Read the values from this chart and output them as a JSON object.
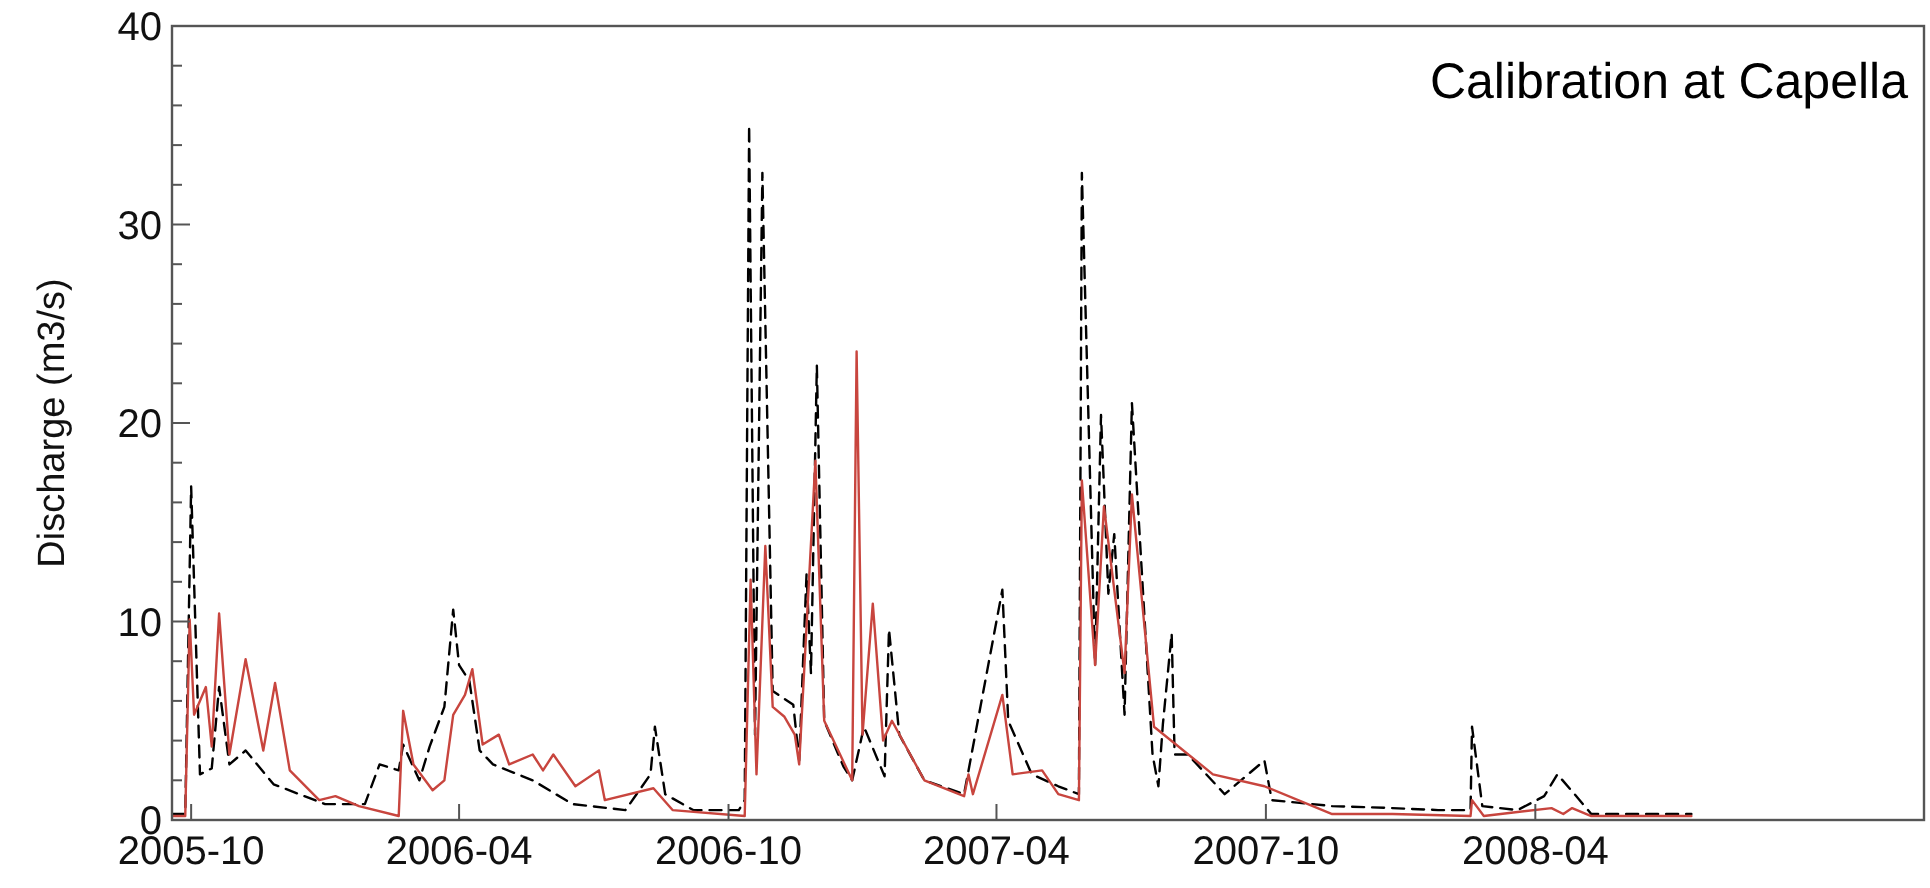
{
  "chart_data": {
    "type": "line",
    "title": "Calibration at Capella",
    "ylabel": "Discharge (m3/s)",
    "xlim": [
      "2005-09-18",
      "2008-12-21"
    ],
    "xticks": [
      {
        "value": "2005-10-01",
        "label": "2005-10"
      },
      {
        "value": "2006-04-01",
        "label": "2006-04"
      },
      {
        "value": "2006-10-01",
        "label": "2006-10"
      },
      {
        "value": "2007-04-01",
        "label": "2007-04"
      },
      {
        "value": "2007-10-01",
        "label": "2007-10"
      },
      {
        "value": "2008-04-01",
        "label": "2008-04"
      }
    ],
    "ylim": [
      0,
      40
    ],
    "yticks": [
      0,
      {
        "value": 2,
        "label": null
      },
      {
        "value": 4,
        "label": null
      },
      {
        "value": 6,
        "label": null
      },
      {
        "value": 8,
        "label": null
      },
      10,
      {
        "value": 12,
        "label": null
      },
      {
        "value": 14,
        "label": null
      },
      {
        "value": 16,
        "label": null
      },
      {
        "value": 18,
        "label": null
      },
      20,
      {
        "value": 22,
        "label": null
      },
      {
        "value": 24,
        "label": null
      },
      {
        "value": 26,
        "label": null
      },
      {
        "value": 28,
        "label": null
      },
      30,
      {
        "value": 32,
        "label": null
      },
      {
        "value": 34,
        "label": null
      },
      {
        "value": 36,
        "label": null
      },
      {
        "value": 38,
        "label": null
      },
      40
    ],
    "series": [
      {
        "color": "#000000",
        "line_style": "dashed",
        "x": [
          "2005-09-18",
          "2005-09-27",
          "2005-10-01",
          "2005-10-07",
          "2005-10-15",
          "2005-10-20",
          "2005-10-27",
          "2005-11-07",
          "2005-11-26",
          "2005-12-31",
          "2006-01-27",
          "2006-02-06",
          "2006-02-19",
          "2006-02-22",
          "2006-03-05",
          "2006-03-12",
          "2006-03-22",
          "2006-03-28",
          "2006-04-01",
          "2006-04-08",
          "2006-04-15",
          "2006-04-24",
          "2006-05-21",
          "2006-06-17",
          "2006-07-23",
          "2006-08-09",
          "2006-08-12",
          "2006-08-19",
          "2006-09-07",
          "2006-10-08",
          "2006-10-12",
          "2006-10-15",
          "2006-10-19",
          "2006-10-24",
          "2006-10-31",
          "2006-11-14",
          "2006-11-18",
          "2006-11-23",
          "2006-11-26",
          "2006-11-30",
          "2006-12-05",
          "2006-12-18",
          "2006-12-24",
          "2007-01-01",
          "2007-01-15",
          "2007-01-18",
          "2007-01-25",
          "2007-02-11",
          "2007-03-10",
          "2007-04-05",
          "2007-04-09",
          "2007-04-25",
          "2007-05-13",
          "2007-05-27",
          "2007-05-29",
          "2007-06-07",
          "2007-06-11",
          "2007-06-16",
          "2007-06-20",
          "2007-06-27",
          "2007-07-02",
          "2007-07-16",
          "2007-07-20",
          "2007-07-23",
          "2007-07-29",
          "2007-07-31",
          "2007-08-09",
          "2007-09-03",
          "2007-09-30",
          "2007-10-05",
          "2007-11-15",
          "2007-12-26",
          "2008-01-26",
          "2008-02-17",
          "2008-02-18",
          "2008-02-25",
          "2008-03-20",
          "2008-04-07",
          "2008-04-16",
          "2008-04-30",
          "2008-05-09",
          "2008-07-16"
        ],
        "values": [
          0.3,
          0.3,
          16.8,
          2.3,
          2.6,
          6.7,
          2.8,
          3.5,
          1.8,
          0.8,
          0.8,
          2.8,
          2.5,
          3.8,
          2.0,
          3.7,
          5.7,
          10.6,
          7.8,
          7.0,
          3.5,
          2.8,
          2.0,
          0.8,
          0.5,
          2.3,
          4.7,
          1.3,
          0.5,
          0.5,
          1.0,
          35.0,
          4.3,
          32.6,
          6.5,
          5.8,
          3.0,
          12.4,
          7.4,
          22.9,
          5.0,
          2.7,
          2.0,
          4.7,
          2.2,
          9.6,
          4.3,
          2.0,
          1.3,
          11.6,
          5.0,
          2.3,
          1.7,
          1.3,
          32.6,
          7.8,
          20.4,
          11.4,
          14.4,
          5.3,
          21.0,
          3.3,
          1.7,
          4.8,
          9.4,
          3.3,
          3.3,
          1.3,
          3.0,
          1.0,
          0.7,
          0.6,
          0.5,
          0.5,
          4.7,
          0.7,
          0.5,
          1.2,
          2.3,
          1.1,
          0.3,
          0.3
        ]
      },
      {
        "color": "#c8453e",
        "line_style": "solid",
        "x": [
          "2005-09-18",
          "2005-09-27",
          "2005-09-30",
          "2005-10-03",
          "2005-10-11",
          "2005-10-15",
          "2005-10-20",
          "2005-10-27",
          "2005-11-07",
          "2005-11-19",
          "2005-11-27",
          "2005-12-07",
          "2005-12-27",
          "2006-01-07",
          "2006-01-23",
          "2006-02-19",
          "2006-02-22",
          "2006-03-01",
          "2006-03-14",
          "2006-03-22",
          "2006-03-28",
          "2006-04-05",
          "2006-04-10",
          "2006-04-17",
          "2006-04-28",
          "2006-05-05",
          "2006-05-21",
          "2006-05-28",
          "2006-06-04",
          "2006-06-19",
          "2006-07-05",
          "2006-07-09",
          "2006-08-11",
          "2006-08-24",
          "2006-10-12",
          "2006-10-16",
          "2006-10-20",
          "2006-10-26",
          "2006-10-31",
          "2006-11-08",
          "2006-11-15",
          "2006-11-18",
          "2006-11-29",
          "2006-12-05",
          "2006-12-24",
          "2006-12-27",
          "2006-12-31",
          "2007-01-07",
          "2007-01-14",
          "2007-01-20",
          "2007-02-11",
          "2007-03-10",
          "2007-03-13",
          "2007-03-16",
          "2007-04-05",
          "2007-04-12",
          "2007-05-02",
          "2007-05-13",
          "2007-05-27",
          "2007-05-29",
          "2007-06-07",
          "2007-06-13",
          "2007-06-27",
          "2007-07-02",
          "2007-07-17",
          "2007-08-26",
          "2007-09-30",
          "2007-11-15",
          "2007-12-26",
          "2008-02-17",
          "2008-02-18",
          "2008-02-26",
          "2008-04-12",
          "2008-04-20",
          "2008-04-26",
          "2008-05-09",
          "2008-07-16"
        ],
        "values": [
          0.2,
          0.2,
          10.1,
          5.3,
          6.7,
          3.7,
          10.4,
          3.3,
          8.1,
          3.5,
          6.9,
          2.5,
          1.0,
          1.2,
          0.7,
          0.2,
          5.5,
          2.8,
          1.5,
          2.0,
          5.3,
          6.3,
          7.6,
          3.8,
          4.3,
          2.8,
          3.3,
          2.5,
          3.3,
          1.7,
          2.5,
          1.0,
          1.6,
          0.5,
          0.2,
          12.1,
          2.3,
          13.8,
          5.7,
          5.2,
          4.3,
          2.8,
          18.1,
          5.0,
          2.0,
          23.6,
          4.3,
          10.9,
          4.0,
          5.0,
          2.0,
          1.2,
          2.3,
          1.3,
          6.3,
          2.3,
          2.5,
          1.3,
          1.0,
          17.1,
          7.8,
          15.8,
          7.4,
          16.4,
          4.7,
          2.3,
          1.7,
          0.3,
          0.3,
          0.2,
          1.0,
          0.2,
          0.6,
          0.3,
          0.6,
          0.2,
          0.2
        ]
      }
    ]
  }
}
